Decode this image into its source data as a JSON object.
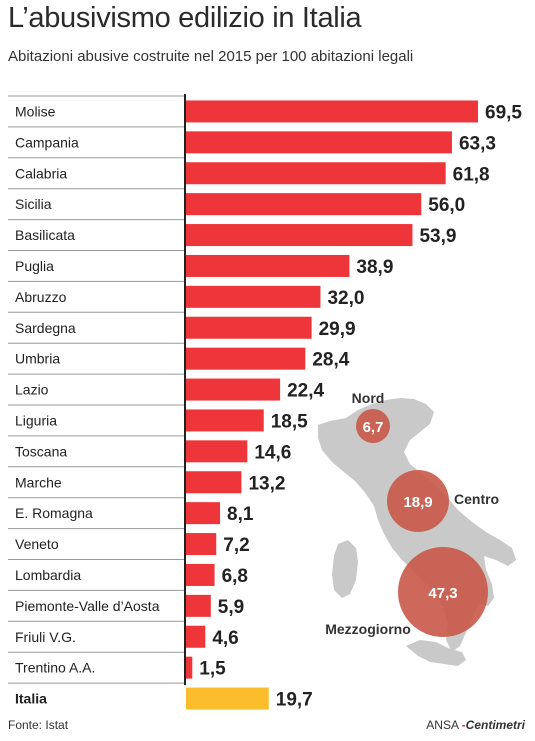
{
  "title": "L’abusivismo edilizio in Italia",
  "subtitle": "Abitazioni abusive costruite nel 2015 per 100 abitazioni legali",
  "source": "Fonte: Istat",
  "brand": {
    "part1": "ANSA",
    "mark": "-",
    "part2": "Centimetri"
  },
  "colors": {
    "bar": "#ee3539",
    "total_bar": "#fbbd2b",
    "map": "#c9c9c9",
    "circle": "#c85848"
  },
  "chart_data": {
    "type": "bar",
    "orientation": "horizontal",
    "categories": [
      "Molise",
      "Campania",
      "Calabria",
      "Sicilia",
      "Basilicata",
      "Puglia",
      "Abruzzo",
      "Sardegna",
      "Umbria",
      "Lazio",
      "Liguria",
      "Toscana",
      "Marche",
      "E. Romagna",
      "Veneto",
      "Lombardia",
      "Piemonte-Valle d’Aosta",
      "Friuli V.G.",
      "Trentino A.A.",
      "Italia"
    ],
    "values": [
      69.5,
      63.3,
      61.8,
      56.0,
      53.9,
      38.9,
      32.0,
      29.9,
      28.4,
      22.4,
      18.5,
      14.6,
      13.2,
      8.1,
      7.2,
      6.8,
      5.9,
      4.6,
      1.5,
      19.7
    ],
    "labels": [
      "69,5",
      "63,3",
      "61,8",
      "56,0",
      "53,9",
      "38,9",
      "32,0",
      "29,9",
      "28,4",
      "22,4",
      "18,5",
      "14,6",
      "13,2",
      "8,1",
      "7,2",
      "6,8",
      "5,9",
      "4,6",
      "1,5",
      "19,7"
    ],
    "highlight_category": "Italia",
    "xlim": [
      0,
      69.5
    ],
    "legend": "none",
    "inset_map": {
      "areas": [
        {
          "name": "Nord",
          "value": 6.7,
          "label": "6,7"
        },
        {
          "name": "Centro",
          "value": 18.9,
          "label": "18,9"
        },
        {
          "name": "Mezzogiorno",
          "value": 47.3,
          "label": "47,3"
        }
      ]
    }
  }
}
